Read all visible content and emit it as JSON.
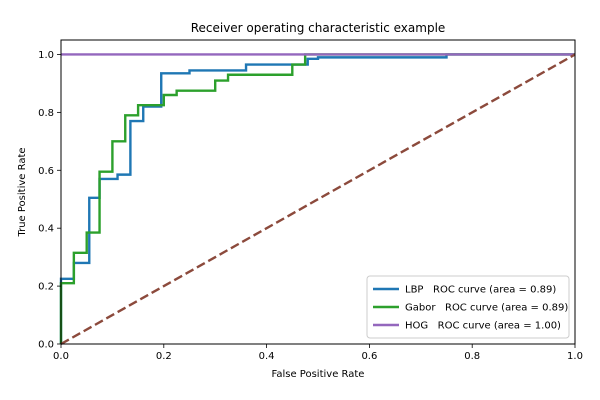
{
  "chart_data": {
    "type": "line",
    "title": "Receiver operating characteristic example",
    "xlabel": "False Positive Rate",
    "ylabel": "True Positive Rate",
    "xlim": [
      0,
      1
    ],
    "ylim": [
      0,
      1.05
    ],
    "xticks": [
      0.0,
      0.2,
      0.4,
      0.6,
      0.8,
      1.0
    ],
    "xtick_labels": [
      "0.0",
      "0.2",
      "0.4",
      "0.6",
      "0.8",
      "1.0"
    ],
    "yticks": [
      0.0,
      0.2,
      0.4,
      0.6,
      0.8,
      1.0
    ],
    "ytick_labels": [
      "0.0",
      "0.2",
      "0.4",
      "0.6",
      "0.8",
      "1.0"
    ],
    "grid": false,
    "legend_position": "lower-right",
    "series": [
      {
        "name": "LBP   ROC curve (area = 0.89)",
        "color": "#1f77b4",
        "dash": "solid",
        "x": [
          0.0,
          0.0,
          0.025,
          0.025,
          0.055,
          0.055,
          0.075,
          0.075,
          0.11,
          0.11,
          0.135,
          0.135,
          0.16,
          0.16,
          0.195,
          0.195,
          0.25,
          0.25,
          0.36,
          0.36,
          0.48,
          0.48,
          0.5,
          0.5,
          0.75,
          0.75,
          1.0
        ],
        "y": [
          0.0,
          0.225,
          0.225,
          0.28,
          0.28,
          0.505,
          0.505,
          0.57,
          0.57,
          0.585,
          0.585,
          0.77,
          0.77,
          0.82,
          0.82,
          0.935,
          0.935,
          0.945,
          0.945,
          0.965,
          0.965,
          0.985,
          0.985,
          0.99,
          0.99,
          1.0,
          1.0
        ]
      },
      {
        "name": "Gabor   ROC curve (area = 0.89)",
        "color": "#2ca02c",
        "dash": "solid",
        "x": [
          0.0,
          0.0,
          0.025,
          0.025,
          0.05,
          0.05,
          0.075,
          0.075,
          0.1,
          0.1,
          0.125,
          0.125,
          0.15,
          0.15,
          0.2,
          0.2,
          0.225,
          0.225,
          0.3,
          0.3,
          0.325,
          0.325,
          0.45,
          0.45,
          0.475,
          0.475,
          1.0
        ],
        "y": [
          0.0,
          0.21,
          0.21,
          0.315,
          0.315,
          0.385,
          0.385,
          0.595,
          0.595,
          0.7,
          0.7,
          0.79,
          0.79,
          0.825,
          0.825,
          0.86,
          0.86,
          0.875,
          0.875,
          0.91,
          0.91,
          0.93,
          0.93,
          0.965,
          0.965,
          1.0,
          1.0
        ]
      },
      {
        "name": "HOG   ROC curve (area = 1.00)",
        "color": "#9467bd",
        "dash": "solid",
        "x": [
          0.0,
          1.0
        ],
        "y": [
          1.0,
          1.0
        ]
      },
      {
        "name": "",
        "color": "#8c4a3c",
        "dash": "dashed",
        "x": [
          0.0,
          1.0
        ],
        "y": [
          0.0,
          1.0
        ]
      }
    ]
  }
}
